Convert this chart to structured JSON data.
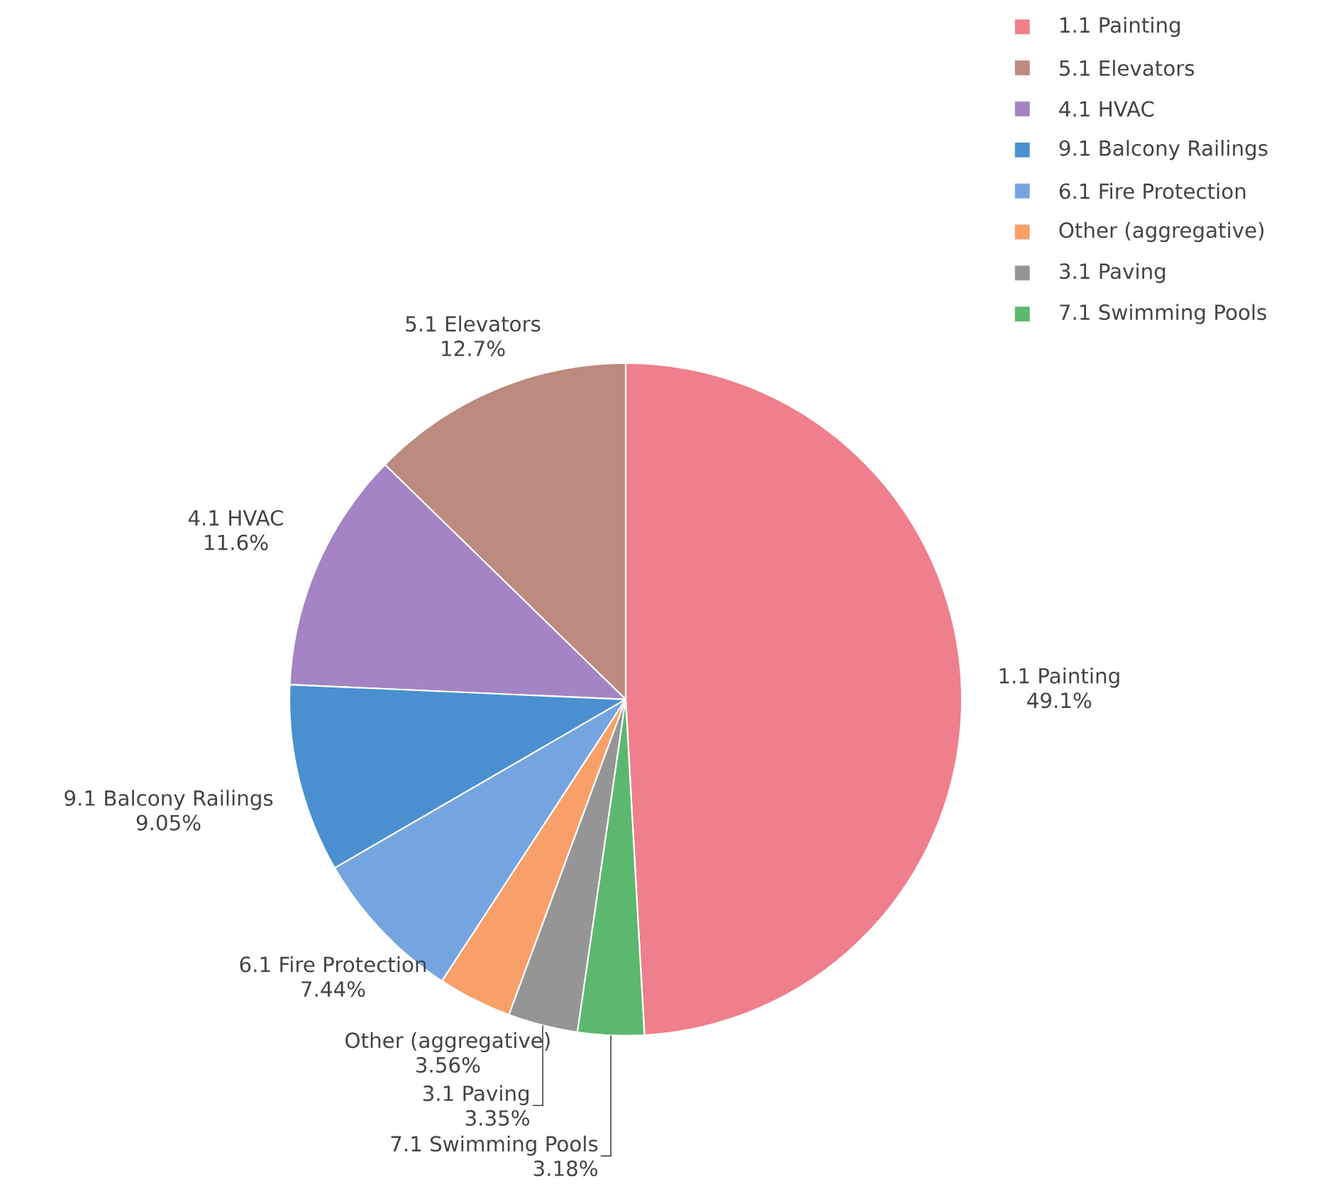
{
  "chart_data": {
    "type": "pie",
    "categories": [
      "1.1 Painting",
      "5.1 Elevators",
      "4.1 HVAC",
      "9.1 Balcony Railings",
      "6.1 Fire Protection",
      "Other (aggregative)",
      "3.1 Paving",
      "7.1 Swimming Pools"
    ],
    "values": [
      49.1,
      12.7,
      11.6,
      9.05,
      7.44,
      3.56,
      3.35,
      3.18
    ],
    "colors": [
      "#ef7f8c",
      "#bc8a7e",
      "#a484c4",
      "#4a90d0",
      "#75a5e0",
      "#f9a06a",
      "#959595",
      "#5bb86e"
    ],
    "value_labels": [
      "49.1%",
      "12.7%",
      "11.6%",
      "9.05%",
      "7.44%",
      "3.56%",
      "3.35%",
      "3.18%"
    ],
    "legend": "top right"
  }
}
